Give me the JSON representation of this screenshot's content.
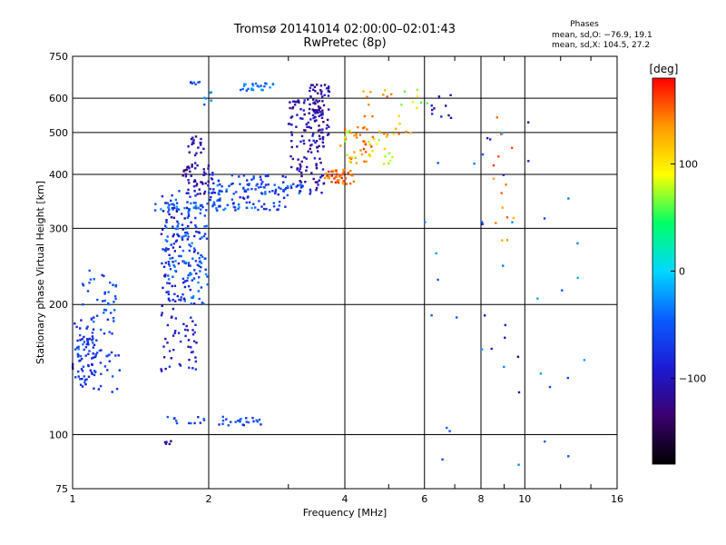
{
  "header": {
    "title_line1": "Tromsø 20141014 02:00:00–02:01:43",
    "title_line2": "RwPretec (8p)"
  },
  "phases": {
    "title": "Phases",
    "o_label": "mean, sd,O: −76.9, 19.1",
    "x_label": "mean, sd,X: 104.5, 27.2"
  },
  "colorbar": {
    "unit": "[deg]",
    "ticks": [
      {
        "value": 100,
        "label": "100"
      },
      {
        "value": 0,
        "label": "0"
      },
      {
        "value": -100,
        "label": "−100"
      }
    ],
    "range": [
      -180,
      180
    ],
    "scale": [
      "#000000",
      "#3b006e",
      "#1b1bd4",
      "#0a5cff",
      "#00d8ff",
      "#00ff66",
      "#ffff00",
      "#ff9900",
      "#ff0000"
    ]
  },
  "chart_data": {
    "type": "scatter",
    "title": "Tromsø 20141014 02:00:00–02:01:43",
    "subtitle": "RwPretec (8p)",
    "xlabel": "Frequency [MHz]",
    "ylabel": "Stationary phase Virtual Height [km]",
    "xscale": "log",
    "yscale": "log",
    "xlim": [
      1,
      16
    ],
    "ylim": [
      75,
      750
    ],
    "xticks": [
      1,
      2,
      4,
      6,
      8,
      10,
      16
    ],
    "xtick_labels": [
      "1",
      "2",
      "4",
      "6",
      "8",
      "10",
      "16"
    ],
    "yticks": [
      75,
      100,
      200,
      300,
      400,
      500,
      600,
      750
    ],
    "ytick_labels": [
      "75",
      "100",
      "200",
      "300",
      "400",
      "500",
      "600",
      "750"
    ],
    "grid": true,
    "color_by": "phase [deg]",
    "clusters": [
      {
        "x": [
          1.0,
          1.13
        ],
        "y": [
          130,
          185
        ],
        "phase": -80,
        "n": 60
      },
      {
        "x": [
          1.03,
          1.25
        ],
        "y": [
          150,
          245
        ],
        "phase": -60,
        "n": 60
      },
      {
        "x": [
          1.05,
          1.28
        ],
        "y": [
          125,
          160
        ],
        "phase": -70,
        "n": 25
      },
      {
        "x": [
          1.57,
          1.9
        ],
        "y": [
          140,
          370
        ],
        "phase": -90,
        "n": 150
      },
      {
        "x": [
          1.6,
          2.0
        ],
        "y": [
          200,
          350
        ],
        "phase": -50,
        "n": 120
      },
      {
        "x": [
          1.75,
          2.05
        ],
        "y": [
          360,
          420
        ],
        "phase": -110,
        "n": 50
      },
      {
        "x": [
          1.8,
          1.95
        ],
        "y": [
          420,
          490
        ],
        "phase": -110,
        "n": 20
      },
      {
        "x": [
          1.52,
          2.6
        ],
        "y": [
          330,
          345
        ],
        "phase": -40,
        "n": 40
      },
      {
        "x": [
          2.0,
          3.0
        ],
        "y": [
          330,
          400
        ],
        "phase": -70,
        "n": 90
      },
      {
        "x": [
          2.0,
          3.4
        ],
        "y": [
          360,
          380
        ],
        "phase": -50,
        "n": 40
      },
      {
        "x": [
          1.6,
          2.75
        ],
        "y": [
          105,
          110
        ],
        "phase": -60,
        "n": 35
      },
      {
        "x": [
          1.6,
          1.65
        ],
        "y": [
          95,
          98
        ],
        "phase": -120,
        "n": 6
      },
      {
        "x": [
          1.75,
          1.95
        ],
        "y": [
          645,
          655
        ],
        "phase": -60,
        "n": 7
      },
      {
        "x": [
          1.95,
          2.05
        ],
        "y": [
          580,
          620
        ],
        "phase": -40,
        "n": 6
      },
      {
        "x": [
          2.35,
          2.8
        ],
        "y": [
          625,
          650
        ],
        "phase": -40,
        "n": 25
      },
      {
        "x": [
          3.0,
          3.6
        ],
        "y": [
          360,
          600
        ],
        "phase": -110,
        "n": 130
      },
      {
        "x": [
          3.3,
          3.7
        ],
        "y": [
          480,
          650
        ],
        "phase": -110,
        "n": 60
      },
      {
        "x": [
          3.6,
          4.2
        ],
        "y": [
          380,
          410
        ],
        "phase": 150,
        "n": 45
      },
      {
        "x": [
          3.9,
          4.6
        ],
        "y": [
          420,
          520
        ],
        "phase": 140,
        "n": 30
      },
      {
        "x": [
          4.0,
          5.2
        ],
        "y": [
          420,
          510
        ],
        "phase": 90,
        "n": 25
      },
      {
        "x": [
          4.2,
          5.6
        ],
        "y": [
          470,
          630
        ],
        "phase": 130,
        "n": 25
      },
      {
        "x": [
          5.2,
          6.2
        ],
        "y": [
          560,
          640
        ],
        "phase": 80,
        "n": 8
      },
      {
        "x": [
          6.0,
          7.5
        ],
        "y": [
          540,
          620
        ],
        "phase": -100,
        "n": 10
      },
      {
        "x": [
          8.5,
          9.5
        ],
        "y": [
          220,
          560
        ],
        "phase": 140,
        "n": 14
      },
      {
        "x": [
          8.0,
          10.5
        ],
        "y": [
          110,
          530
        ],
        "phase": -100,
        "n": 12
      },
      {
        "x": [
          6.0,
          14.0
        ],
        "y": [
          80,
          600
        ],
        "phase": -40,
        "n": 30
      }
    ]
  }
}
